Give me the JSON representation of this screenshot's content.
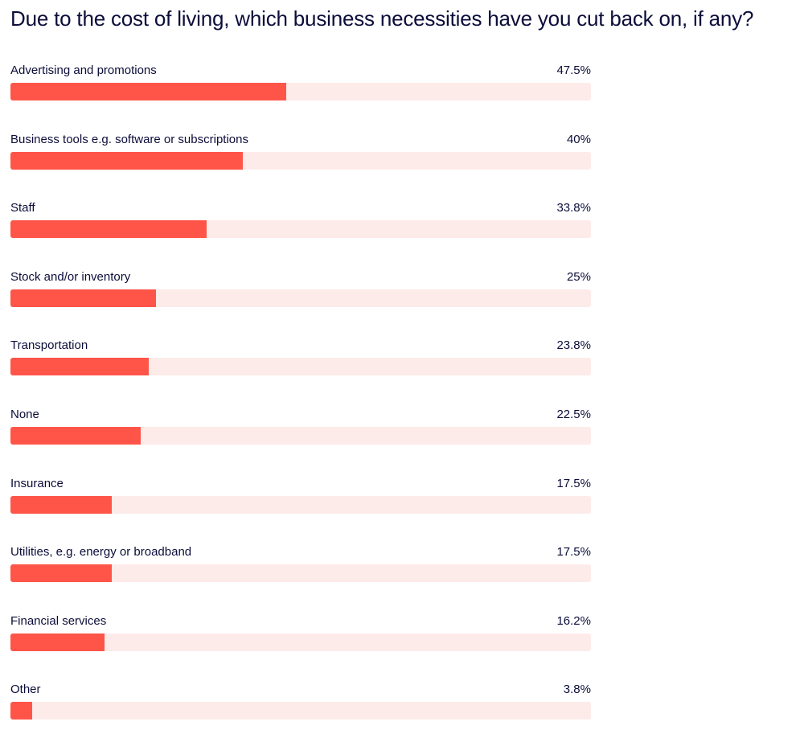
{
  "colors": {
    "bar_fill": "#ff5549",
    "bar_track": "#fdebe9",
    "text": "#0b0d3a"
  },
  "chart_data": {
    "type": "bar",
    "orientation": "horizontal",
    "title": "Due to the cost of living, which business necessities have you cut back on, if any?",
    "categories": [
      "Advertising and promotions",
      "Business tools e.g. software or subscriptions",
      "Staff",
      "Stock and/or inventory",
      "Transportation",
      "None",
      "Insurance",
      "Utilities, e.g. energy or broadband",
      "Financial services",
      "Other"
    ],
    "values": [
      47.5,
      40,
      33.8,
      25,
      23.8,
      22.5,
      17.5,
      17.5,
      16.2,
      3.8
    ],
    "value_labels": [
      "47.5%",
      "40%",
      "33.8%",
      "25%",
      "23.8%",
      "22.5%",
      "17.5%",
      "17.5%",
      "16.2%",
      "3.8%"
    ],
    "xlim": [
      0,
      100
    ],
    "grid": false,
    "legend": "none"
  }
}
